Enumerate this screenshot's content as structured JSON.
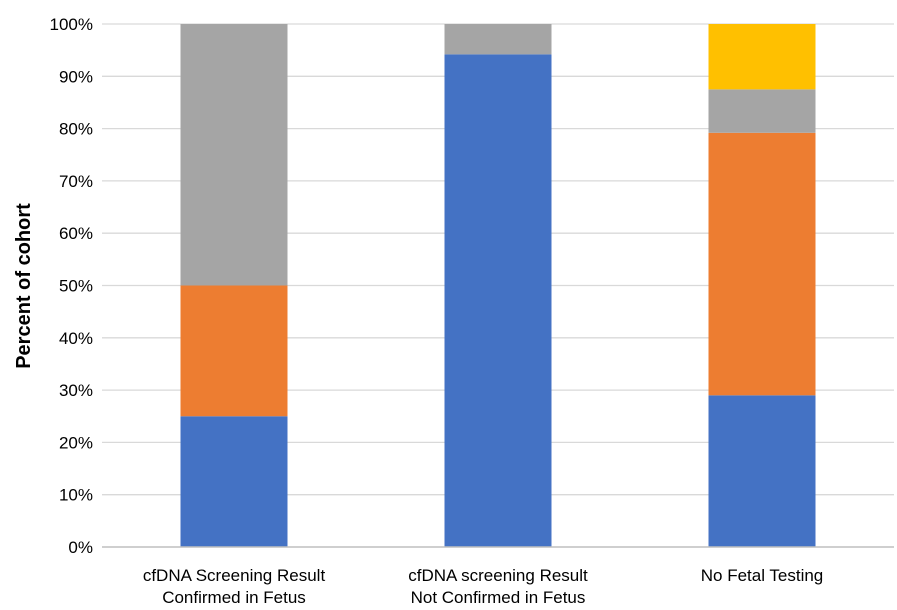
{
  "chart_data": {
    "type": "bar",
    "stacked": true,
    "title": "",
    "xlabel": "",
    "ylabel": "Percent of cohort",
    "ylim": [
      0,
      100
    ],
    "yticks": [
      "0%",
      "10%",
      "20%",
      "30%",
      "40%",
      "50%",
      "60%",
      "70%",
      "80%",
      "90%",
      "100%"
    ],
    "grid": "horizontal",
    "legend": "none",
    "categories": [
      [
        "cfDNA Screening Result",
        "Confirmed in Fetus"
      ],
      [
        "cfDNA screening Result",
        "Not Confirmed in Fetus"
      ],
      [
        "No Fetal Testing"
      ]
    ],
    "series": [
      {
        "color": "#4472c4",
        "values": [
          25,
          94.2,
          29
        ]
      },
      {
        "color": "#ed7d31",
        "values": [
          25,
          0,
          50.2
        ]
      },
      {
        "color": "#a5a5a5",
        "values": [
          50,
          5.8,
          8.3
        ]
      },
      {
        "color": "#ffc000",
        "values": [
          0,
          0,
          12.5
        ]
      }
    ]
  }
}
